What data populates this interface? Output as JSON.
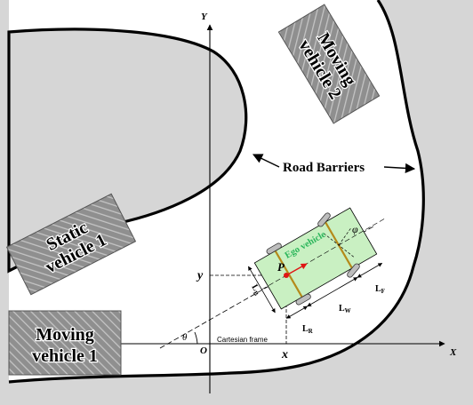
{
  "axes": {
    "y_label": "Y",
    "x_label": "X",
    "origin_label": "O",
    "frame_label": "Cartesian frame",
    "theta": "θ"
  },
  "barrier": {
    "label": "Road Barriers"
  },
  "vehicles": {
    "moving2_line1": "Moving",
    "moving2_line2": "vehicle 2",
    "static1_line1": "Static",
    "static1_line2": "vehicle 1",
    "moving1_line1": "Moving",
    "moving1_line2": "vehicle 1"
  },
  "ego": {
    "name": "Ego vehicle",
    "point": "P",
    "v": "v",
    "phi": "φ",
    "coord_x": "x",
    "coord_y": "y",
    "dim_front": "L",
    "dim_front_sub": "F",
    "dim_wheelbase": "L",
    "dim_wheelbase_sub": "W",
    "dim_rear": "L",
    "dim_rear_sub": "R",
    "dim_width": "L",
    "dim_width_sub": "B"
  },
  "colors": {
    "background": "#d6d6d6",
    "road": "#ffffff",
    "vehicle_hatch": "#8f8f8f",
    "ego_body": "#c9f0c2",
    "ego_axle": "#b58a1a",
    "ego_label": "#2bb55a",
    "point_marker": "#e01515"
  }
}
